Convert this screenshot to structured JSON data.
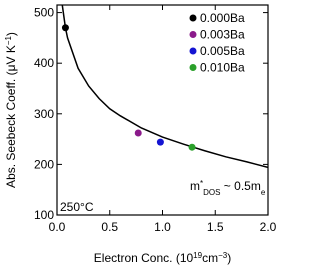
{
  "chart_data": {
    "type": "scatter",
    "xlabel": [
      "Electron Conc. (10",
      "19",
      "cm",
      "−3",
      ")"
    ],
    "ylabel": [
      "Abs. Seebeck Coeff. (μV K",
      "−1",
      ")"
    ],
    "xlim": [
      0,
      2
    ],
    "ylim": [
      100,
      515
    ],
    "xticks": [
      {
        "value": 0,
        "label": "0.0"
      },
      {
        "value": 0.5,
        "label": "0.5"
      },
      {
        "value": 1,
        "label": "1.0"
      },
      {
        "value": 1.5,
        "label": "1.5"
      },
      {
        "value": 2,
        "label": "2.0"
      }
    ],
    "yticks": [
      100,
      200,
      300,
      400,
      500
    ],
    "series": [
      {
        "name": "0.000Ba",
        "color": "#000000",
        "x": [
          0.08
        ],
        "values": [
          470
        ]
      },
      {
        "name": "0.003Ba",
        "color": "#8b1a8b",
        "x": [
          0.77
        ],
        "values": [
          262
        ]
      },
      {
        "name": "0.005Ba",
        "color": "#1414d2",
        "x": [
          0.98
        ],
        "values": [
          244
        ]
      },
      {
        "name": "0.010Ba",
        "color": "#2aa02a",
        "x": [
          1.28
        ],
        "values": [
          234
        ]
      }
    ],
    "curve": {
      "color": "#000000",
      "x": [
        0.05,
        0.08,
        0.1,
        0.2,
        0.3,
        0.4,
        0.5,
        0.6,
        0.8,
        1.0,
        1.2,
        1.4,
        1.6,
        1.8,
        2.0
      ],
      "values": [
        515,
        470,
        450,
        390,
        355,
        330,
        310,
        296,
        272,
        254,
        240,
        227,
        215,
        205,
        194
      ]
    },
    "annotations": [
      {
        "text": [
          "m",
          "*",
          "DOS",
          " ~ 0.5m",
          "e"
        ]
      },
      {
        "text": [
          "250°C"
        ]
      }
    ],
    "legend": "upper right"
  }
}
